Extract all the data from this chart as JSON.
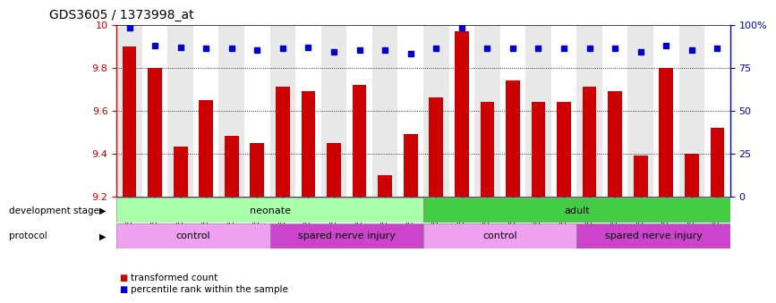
{
  "title": "GDS3605 / 1373998_at",
  "samples": [
    "GSM466420",
    "GSM466421",
    "GSM466422",
    "GSM466423",
    "GSM466424",
    "GSM466425",
    "GSM466426",
    "GSM466427",
    "GSM466428",
    "GSM466429",
    "GSM466430",
    "GSM466431",
    "GSM466408",
    "GSM466409",
    "GSM466410",
    "GSM466411",
    "GSM466412",
    "GSM466413",
    "GSM466414",
    "GSM466415",
    "GSM466416",
    "GSM466417",
    "GSM466418",
    "GSM466419"
  ],
  "bar_values": [
    9.9,
    9.8,
    9.43,
    9.65,
    9.48,
    9.45,
    9.71,
    9.69,
    9.45,
    9.72,
    9.3,
    9.49,
    9.66,
    9.97,
    9.64,
    9.74,
    9.64,
    9.64,
    9.71,
    9.69,
    9.39,
    9.8,
    9.4,
    9.52
  ],
  "percentile_values": [
    98,
    88,
    87,
    86,
    86,
    85,
    86,
    87,
    84,
    85,
    85,
    83,
    86,
    98,
    86,
    86,
    86,
    86,
    86,
    86,
    84,
    88,
    85,
    86
  ],
  "bar_color": "#cc0000",
  "dot_color": "#0000cc",
  "ylim_left": [
    9.2,
    10.0
  ],
  "ylim_right": [
    0,
    100
  ],
  "yticks_left": [
    9.2,
    9.4,
    9.6,
    9.8,
    10.0
  ],
  "ytick_labels_left": [
    "9.2",
    "9.4",
    "9.6",
    "9.8",
    "10"
  ],
  "yticks_right": [
    0,
    25,
    50,
    75,
    100
  ],
  "ytick_labels_right": [
    "0",
    "25",
    "50",
    "75",
    "100%"
  ],
  "col_bg_odd": "#e8e8e8",
  "col_bg_even": "#ffffff",
  "dev_stage_groups": [
    {
      "label": "neonate",
      "start": 0,
      "end": 11,
      "color": "#aaffaa"
    },
    {
      "label": "adult",
      "start": 12,
      "end": 23,
      "color": "#44cc44"
    }
  ],
  "protocol_groups": [
    {
      "label": "control",
      "start": 0,
      "end": 5,
      "color": "#f0a0f0"
    },
    {
      "label": "spared nerve injury",
      "start": 6,
      "end": 11,
      "color": "#cc44cc"
    },
    {
      "label": "control",
      "start": 12,
      "end": 17,
      "color": "#f0a0f0"
    },
    {
      "label": "spared nerve injury",
      "start": 18,
      "end": 23,
      "color": "#cc44cc"
    }
  ],
  "legend_items": [
    {
      "label": "transformed count",
      "color": "#cc0000"
    },
    {
      "label": "percentile rank within the sample",
      "color": "#0000cc"
    }
  ]
}
